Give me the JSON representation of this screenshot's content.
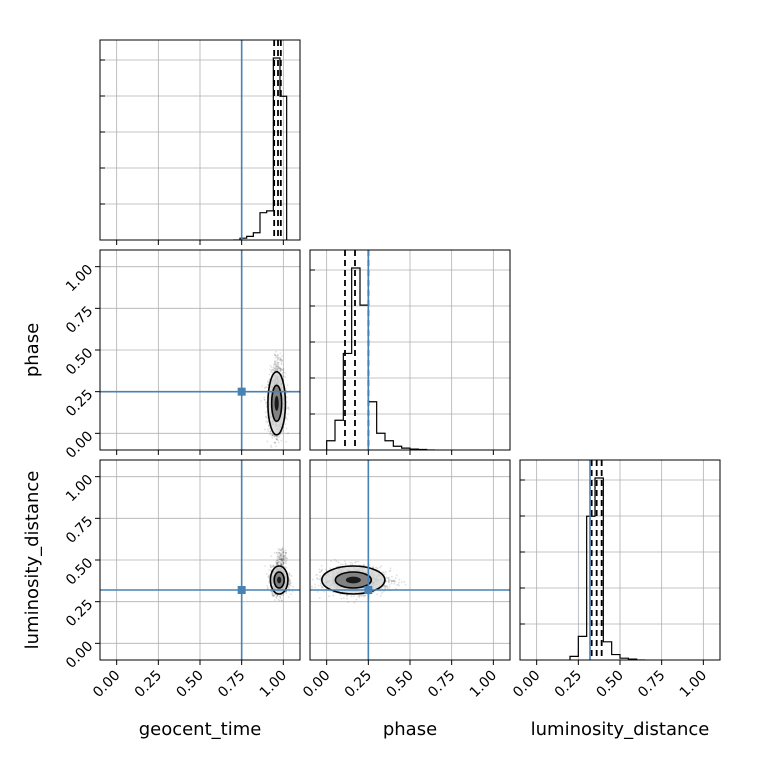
{
  "chart_data": {
    "type": "corner",
    "parameters": [
      "geocent_time",
      "phase",
      "luminosity_distance"
    ],
    "axis_labels": {
      "x": [
        "geocent_time",
        "phase",
        "luminosity_distance"
      ],
      "y": [
        "",
        "phase",
        "luminosity_distance"
      ]
    },
    "tick_values": [
      0.0,
      0.25,
      0.5,
      0.75,
      1.0
    ],
    "tick_labels": [
      "0.00",
      "0.25",
      "0.50",
      "0.75",
      "1.00"
    ],
    "axis_range": [
      -0.1,
      1.1
    ],
    "grid": true,
    "truths": {
      "geocent_time": 0.75,
      "phase": 0.25,
      "luminosity_distance": 0.32
    },
    "truth_color": "#4682b4",
    "quantile_lines": {
      "geocent_time": [
        0.945,
        0.968,
        0.985
      ],
      "phase": [
        0.11,
        0.17,
        0.25
      ],
      "luminosity_distance": [
        0.33,
        0.36,
        0.39
      ]
    },
    "histograms": {
      "geocent_time": {
        "bin_edges": [
          0.7,
          0.74,
          0.78,
          0.82,
          0.86,
          0.9,
          0.94,
          0.98,
          1.02
        ],
        "counts": [
          0.0,
          0.01,
          0.02,
          0.04,
          0.15,
          0.16,
          1.0,
          0.79
        ]
      },
      "phase": {
        "bin_edges": [
          0.0,
          0.05,
          0.1,
          0.15,
          0.2,
          0.25,
          0.3,
          0.35,
          0.4,
          0.45,
          0.5,
          0.55,
          0.6,
          0.65
        ],
        "counts": [
          0.05,
          0.16,
          0.52,
          0.98,
          0.78,
          0.26,
          0.09,
          0.05,
          0.02,
          0.01,
          0.005,
          0.003,
          0.0
        ]
      },
      "luminosity_distance": {
        "bin_edges": [
          0.2,
          0.25,
          0.3,
          0.35,
          0.4,
          0.45,
          0.5,
          0.55,
          0.6,
          0.65
        ],
        "counts": [
          0.02,
          0.13,
          0.79,
          1.0,
          0.1,
          0.03,
          0.01,
          0.005,
          0.0
        ]
      }
    },
    "scatter_panels": [
      {
        "x": "geocent_time",
        "y": "phase",
        "center": [
          0.96,
          0.18
        ],
        "spread": [
          0.025,
          0.09
        ],
        "tail": [
          0.97,
          0.45
        ]
      },
      {
        "x": "geocent_time",
        "y": "luminosity_distance",
        "center": [
          0.975,
          0.38
        ],
        "spread": [
          0.025,
          0.04
        ],
        "tail": [
          0.99,
          0.55
        ]
      },
      {
        "x": "phase",
        "y": "luminosity_distance",
        "center": [
          0.16,
          0.38
        ],
        "spread": [
          0.09,
          0.04
        ],
        "tail": [
          0.4,
          0.36
        ]
      }
    ]
  }
}
